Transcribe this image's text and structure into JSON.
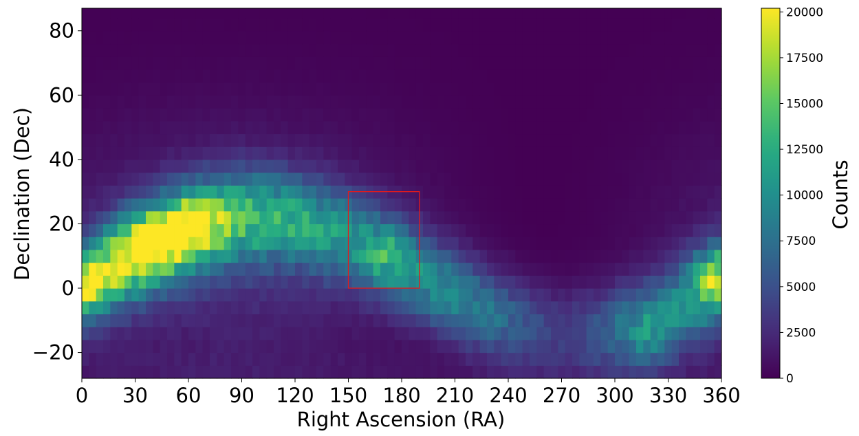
{
  "chart_data": {
    "type": "heatmap",
    "title": "",
    "xlabel": "Right Ascension (RA)",
    "ylabel": "Declination (Dec)",
    "xlim": [
      0,
      360
    ],
    "ylim": [
      -28,
      87
    ],
    "xticks": [
      0,
      30,
      60,
      90,
      120,
      150,
      180,
      210,
      240,
      270,
      300,
      330,
      360
    ],
    "xtick_labels": [
      "0",
      "30",
      "60",
      "90",
      "120",
      "150",
      "180",
      "210",
      "240",
      "270",
      "300",
      "330",
      "360"
    ],
    "yticks": [
      -20,
      0,
      20,
      40,
      60,
      80
    ],
    "ytick_labels": [
      "−20",
      "0",
      "20",
      "40",
      "60",
      "80"
    ],
    "colormap": "viridis",
    "bin_size": {
      "ra": 4,
      "dec": 4
    },
    "colorbar": {
      "label": "Counts",
      "range": [
        0,
        20200
      ],
      "ticks": [
        0,
        2500,
        5000,
        7500,
        10000,
        12500,
        15000,
        17500,
        20000
      ],
      "tick_labels": [
        "0",
        "2500",
        "5000",
        "7500",
        "10000",
        "12500",
        "15000",
        "17500",
        "20000"
      ]
    },
    "density_model": {
      "description": "Sinusoidal band of high counts: dec_center(RA) = 4 + 18*sin((RA-10)*pi/180)",
      "peak_counts": 20000,
      "hotspots": [
        {
          "ra": 32,
          "dec": 14,
          "counts": 20000
        },
        {
          "ra": 46,
          "dec": 15,
          "counts": 19500
        },
        {
          "ra": 62,
          "dec": 21,
          "counts": 18500
        },
        {
          "ra": 4,
          "dec": 2,
          "counts": 17000
        },
        {
          "ra": 355,
          "dec": 5,
          "counts": 12000
        },
        {
          "ra": 320,
          "dec": -16,
          "counts": 9500
        },
        {
          "ra": 175,
          "dec": 10,
          "counts": 11000
        }
      ]
    },
    "annotations": [
      {
        "type": "rectangle",
        "ra_range": [
          150,
          190
        ],
        "dec_range": [
          0,
          30
        ],
        "color": "#e41a1c"
      }
    ]
  }
}
